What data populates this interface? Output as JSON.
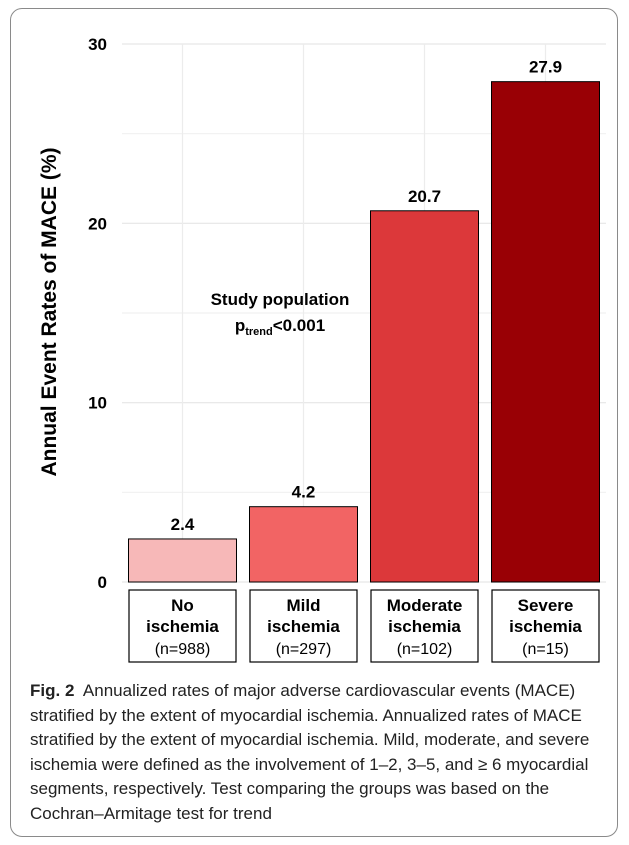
{
  "chart_data": {
    "type": "bar",
    "ylabel": "Annual Event Rates of MACE (%)",
    "ylim": [
      0,
      30
    ],
    "yticks": [
      0,
      10,
      20,
      30
    ],
    "grid": true,
    "categories": [
      {
        "lines": [
          "No",
          "ischemia"
        ],
        "n": "(n=988)"
      },
      {
        "lines": [
          "Mild",
          "ischemia"
        ],
        "n": "(n=297)"
      },
      {
        "lines": [
          "Moderate",
          "ischemia"
        ],
        "n": "(n=102)"
      },
      {
        "lines": [
          "Severe",
          "ischemia"
        ],
        "n": "(n=15)"
      }
    ],
    "values": [
      2.4,
      4.2,
      20.7,
      27.9
    ],
    "value_labels": [
      "2.4",
      "4.2",
      "20.7",
      "27.9"
    ],
    "colors": [
      "#f7b8b8",
      "#f26464",
      "#dc383a",
      "#990005"
    ],
    "annotation": {
      "line1": "Study population",
      "line2_main": "p",
      "line2_sub": "trend",
      "line2_rest": "<0.001"
    }
  },
  "caption": {
    "label": "Fig. 2",
    "text": "Annualized rates of major adverse cardiovascular events (MACE) stratified by the extent of myocardial ischemia. Annualized rates of MACE stratified by the extent of myocardial ischemia. Mild, moderate, and severe ischemia were defined as the involvement of 1–2, 3–5, and ≥ 6 myocardial segments, respectively. Test comparing the groups was based on the Cochran–Armitage test for trend"
  }
}
